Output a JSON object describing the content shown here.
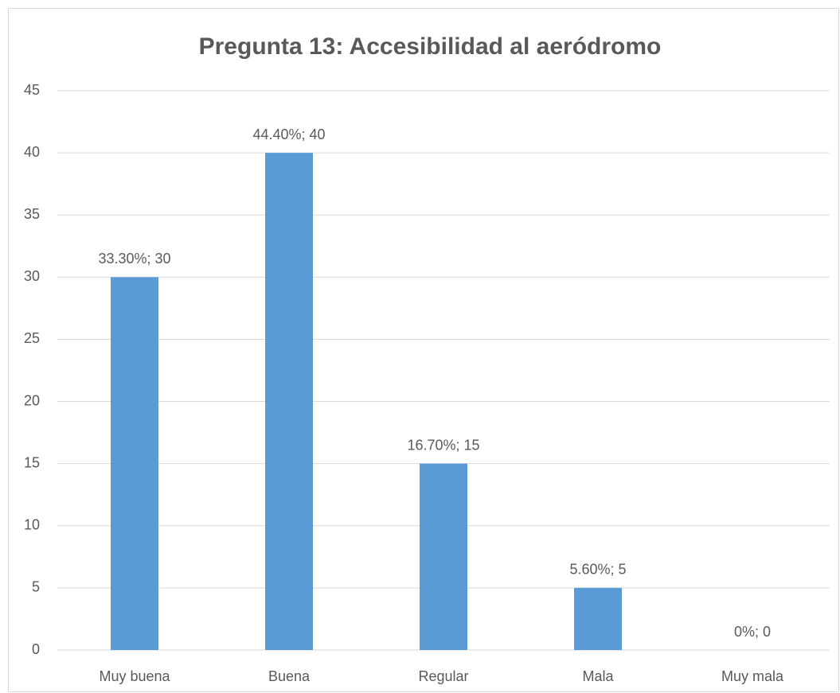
{
  "chart_data": {
    "type": "bar",
    "title": "Pregunta 13: Accesibilidad al aeródromo",
    "categories": [
      "Muy buena",
      "Buena",
      "Regular",
      "Mala",
      "Muy mala"
    ],
    "values": [
      30,
      40,
      15,
      5,
      0
    ],
    "value_labels": [
      "33.30%; 30",
      "44.40%; 40",
      "16.70%; 15",
      "5.60%; 5",
      "0%; 0"
    ],
    "color": "#5b9bd5",
    "ylim": [
      0,
      45
    ],
    "yticks": [
      0,
      5,
      10,
      15,
      20,
      25,
      30,
      35,
      40,
      45
    ],
    "grid": true
  }
}
